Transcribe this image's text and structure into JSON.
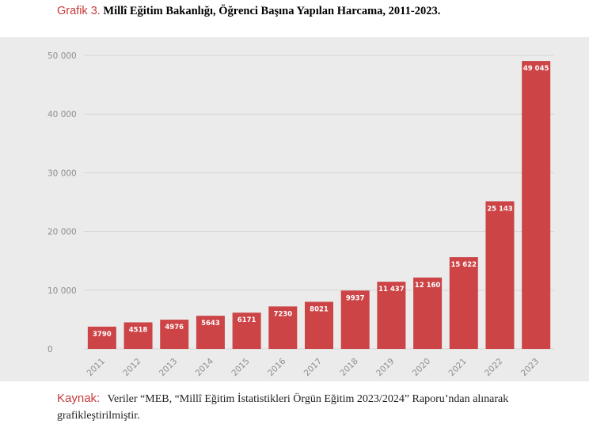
{
  "caption": {
    "lead": "Grafik 3.",
    "text": "Millî Eğitim Bakanlığı, Öğrenci Başına Yapılan Harcama, 2011-2023."
  },
  "source": {
    "lead": "Kaynak:",
    "text": "Veriler “MEB, “Millî Eğitim İstatistikleri Örgün Eğitim 2023/2024” Raporu’ndan alınarak grafikleştirilmiştir."
  },
  "chart_data": {
    "type": "bar",
    "categories": [
      "2011",
      "2012",
      "2013",
      "2014",
      "2015",
      "2016",
      "2017",
      "2018",
      "2019",
      "2020",
      "2021",
      "2022",
      "2023"
    ],
    "values": [
      3790,
      4518,
      4976,
      5643,
      6171,
      7230,
      8021,
      9937,
      11437,
      12160,
      15622,
      25143,
      49045
    ],
    "value_labels": [
      "3790",
      "4518",
      "4976",
      "5643",
      "6171",
      "7230",
      "8021",
      "9937",
      "11 437",
      "12 160",
      "15 622",
      "25 143",
      "49 045"
    ],
    "ylim": [
      0,
      50000
    ],
    "yticks": [
      0,
      10000,
      20000,
      30000,
      40000,
      50000
    ],
    "ytick_labels": [
      "0",
      "10 000",
      "20 000",
      "30 000",
      "40 000",
      "50 000"
    ],
    "grid": true,
    "colors": {
      "bar": "#cc4446",
      "grid": "#d4d4d4",
      "background": "#ebebeb"
    }
  }
}
